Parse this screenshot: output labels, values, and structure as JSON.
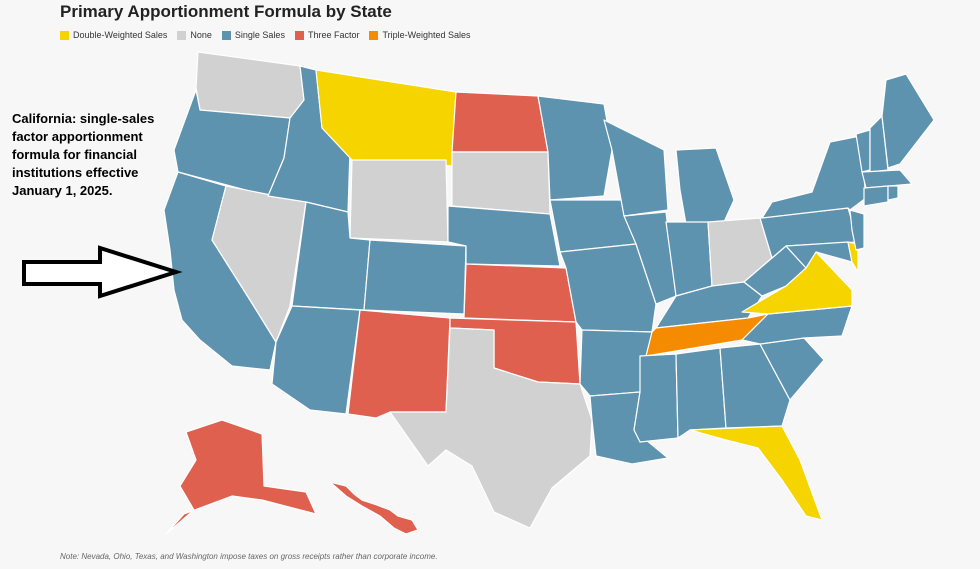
{
  "title": "Primary Apportionment Formula by State",
  "colors": {
    "double_weighted_sales": "#f5d400",
    "none": "#d1d1d1",
    "single_sales": "#5e93b0",
    "three_factor": "#e0604f",
    "triple_weighted_sales": "#f58b00"
  },
  "legend": [
    {
      "label": "Double-Weighted Sales",
      "color": "#f5d400"
    },
    {
      "label": "None",
      "color": "#d1d1d1"
    },
    {
      "label": "Single Sales",
      "color": "#5e93b0"
    },
    {
      "label": "Three Factor",
      "color": "#e0604f"
    },
    {
      "label": "Triple-Weighted Sales",
      "color": "#f58b00"
    }
  ],
  "annotation": "California: single-sales factor apportionment formula for financial institutions effective January 1, 2025.",
  "note": "Note: Nevada, Ohio, Texas, and Washington impose taxes on gross receipts rather than corporate income.",
  "states": {
    "WA": "None",
    "OR": "Single Sales",
    "CA": "Single Sales",
    "NV": "None",
    "ID": "Single Sales",
    "MT": "Double-Weighted Sales",
    "WY": "None",
    "UT": "Single Sales",
    "AZ": "Single Sales",
    "CO": "Single Sales",
    "NM": "Three Factor",
    "ND": "Three Factor",
    "SD": "None",
    "NE": "Single Sales",
    "KS": "Three Factor",
    "OK": "Three Factor",
    "TX": "None",
    "MN": "Single Sales",
    "IA": "Single Sales",
    "MO": "Single Sales",
    "AR": "Single Sales",
    "LA": "Single Sales",
    "WI": "Single Sales",
    "IL": "Single Sales",
    "MI": "Single Sales",
    "IN": "Single Sales",
    "OH": "None",
    "KY": "Single Sales",
    "TN": "Triple-Weighted Sales",
    "MS": "Single Sales",
    "AL": "Single Sales",
    "GA": "Single Sales",
    "FL": "Double-Weighted Sales",
    "SC": "Single Sales",
    "NC": "Single Sales",
    "VA": "Double-Weighted Sales",
    "WV": "Single Sales",
    "MD": "Single Sales",
    "DE": "Double-Weighted Sales",
    "NJ": "Single Sales",
    "PA": "Single Sales",
    "NY": "Single Sales",
    "CT": "Single Sales",
    "RI": "Single Sales",
    "MA": "Single Sales",
    "VT": "Single Sales",
    "NH": "Single Sales",
    "ME": "Single Sales",
    "AK": "Three Factor",
    "HI": "Three Factor"
  }
}
